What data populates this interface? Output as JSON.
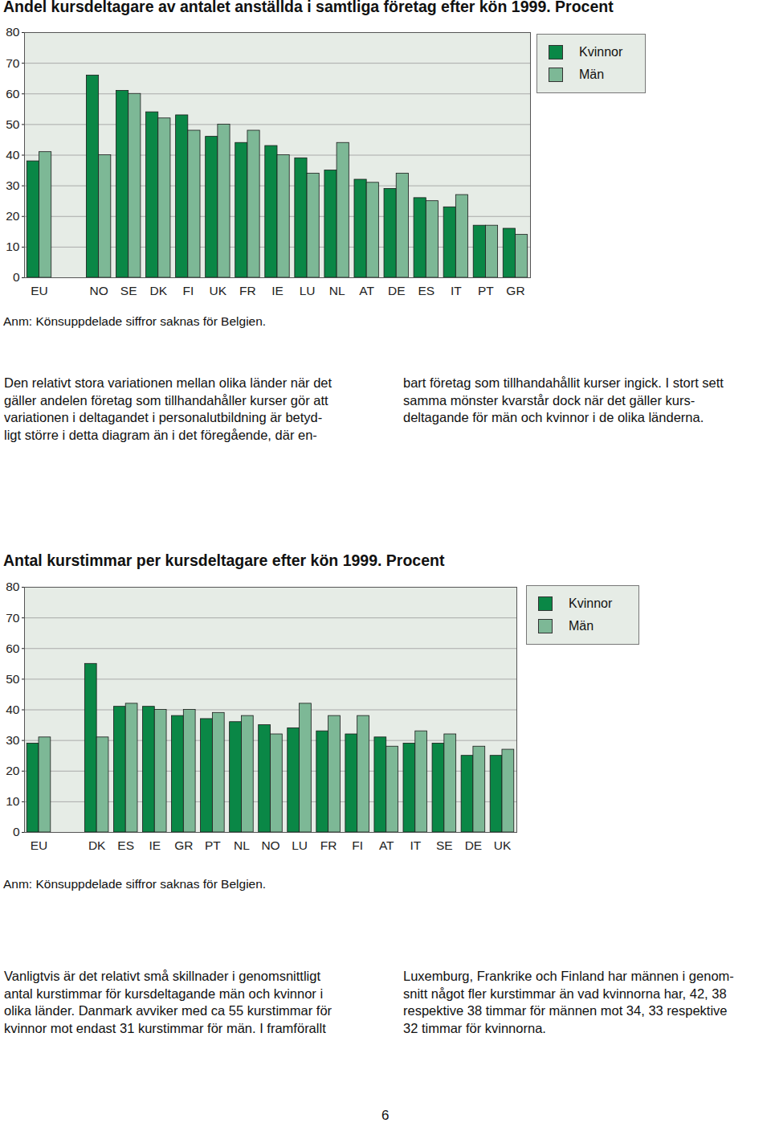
{
  "chart_data": [
    {
      "type": "bar",
      "title": "Andel kursdeltagare av antalet anställda i samtliga företag efter kön 1999. Procent",
      "categories": [
        "EU",
        null,
        "NO",
        "SE",
        "DK",
        "FI",
        "UK",
        "FR",
        "IE",
        "LU",
        "NL",
        "AT",
        "DE",
        "ES",
        "IT",
        "PT",
        "GR"
      ],
      "series": [
        {
          "name": "Kvinnor",
          "color": "#0a8746",
          "values": [
            38,
            null,
            66,
            61,
            54,
            53,
            46,
            44,
            43,
            39,
            35,
            32,
            29,
            26,
            23,
            17,
            16
          ]
        },
        {
          "name": "Män",
          "color": "#7db896",
          "values": [
            41,
            null,
            40,
            60,
            52,
            48,
            50,
            48,
            40,
            34,
            44,
            31,
            34,
            25,
            27,
            17,
            14
          ]
        }
      ],
      "ylim": [
        0,
        80
      ],
      "yticks": [
        0,
        10,
        20,
        30,
        40,
        50,
        60,
        70,
        80
      ],
      "grid": true,
      "legend": "top-right",
      "annotations": [
        "Anm: Könsuppdelade siffror saknas för Belgien."
      ]
    },
    {
      "type": "bar",
      "title": "Antal kurstimmar per kursdeltagare efter kön 1999. Procent",
      "categories": [
        "EU",
        null,
        "DK",
        "ES",
        "IE",
        "GR",
        "PT",
        "NL",
        "NO",
        "LU",
        "FR",
        "FI",
        "AT",
        "IT",
        "SE",
        "DE",
        "UK"
      ],
      "series": [
        {
          "name": "Kvinnor",
          "color": "#0a8746",
          "values": [
            29,
            null,
            55,
            41,
            41,
            38,
            37,
            36,
            35,
            34,
            33,
            32,
            31,
            29,
            29,
            25,
            25
          ]
        },
        {
          "name": "Män",
          "color": "#7db896",
          "values": [
            31,
            null,
            31,
            42,
            40,
            40,
            39,
            38,
            32,
            42,
            38,
            38,
            28,
            33,
            32,
            28,
            27
          ]
        }
      ],
      "ylim": [
        0,
        80
      ],
      "yticks": [
        0,
        10,
        20,
        30,
        40,
        50,
        60,
        70,
        80
      ],
      "grid": true,
      "legend": "top-right",
      "annotations": [
        "Anm: Könsuppdelade siffror saknas för Belgien."
      ]
    }
  ],
  "paragraphs": [
    {
      "columns": [
        [
          "Den relativt stora variationen mellan olika länder när det",
          "gäller andelen företag som tillhandahåller kurser gör att",
          "variationen i deltagandet i personalutbildning är betyd-",
          "ligt större i detta diagram än i det föregående, där en-"
        ],
        [
          "bart företag som tillhandahållit kurser ingick. I stort sett",
          "samma mönster kvarstår dock när det gäller kurs-",
          "deltagande för män och kvinnor i de olika länderna."
        ]
      ]
    },
    {
      "columns": [
        [
          "Vanligtvis är det relativt små skillnader i genomsnittligt",
          "antal kurstimmar för kursdeltagande män och kvinnor i",
          "olika länder. Danmark avviker med ca 55 kurstimmar för",
          "kvinnor mot endast 31 kurstimmar för män. I framförallt"
        ],
        [
          "Luxemburg, Frankrike och Finland har männen i genom-",
          "snitt något fler kurstimmar än vad kvinnorna har, 42, 38",
          "respektive 38 timmar för männen mot 34, 33 respektive",
          "32 timmar för kvinnorna."
        ]
      ]
    }
  ],
  "page_number": "6"
}
